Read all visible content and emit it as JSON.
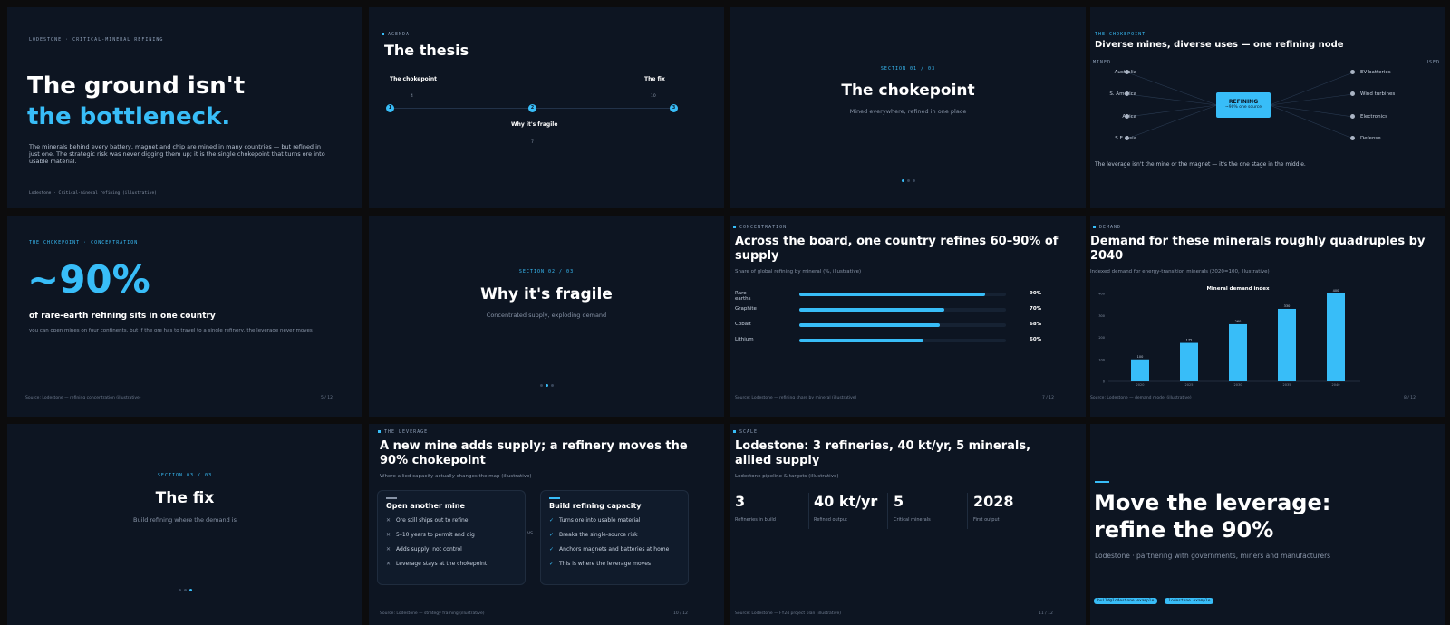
{
  "s1": {
    "kicker": "LODESTONE · CRITICAL-MINERAL REFINING",
    "title_line1": "The ground isn't",
    "title_line2": "the bottleneck.",
    "body": "The minerals behind every battery, magnet and chip are mined in many countries — but refined in just one. The strategic risk was never digging them up; it is the single chokepoint that turns ore into usable material.",
    "footer": "Lodestone · Critical-mineral refining (illustrative)"
  },
  "s2": {
    "kicker": "AGENDA",
    "title": "The thesis",
    "items": [
      {
        "label": "The chokepoint",
        "num": "1",
        "page": "4"
      },
      {
        "label": "Why it's fragile",
        "num": "2",
        "page": "7"
      },
      {
        "label": "The fix",
        "num": "3",
        "page": "10"
      }
    ]
  },
  "s3": {
    "kicker": "SECTION 01 / 03",
    "title": "The chokepoint",
    "subtitle": "Mined everywhere, refined in one place"
  },
  "s4": {
    "kicker": "THE CHOKEPOINT",
    "title": "Diverse mines, diverse uses — one refining node",
    "mined_label": "MINED",
    "used_label": "USED",
    "mined": [
      "Australia",
      "S. America",
      "Africa",
      "S.E. Asia"
    ],
    "used": [
      "EV batteries",
      "Wind turbines",
      "Electronics",
      "Defense"
    ],
    "node_title": "REFINING",
    "node_sub": "~90% one source",
    "caption": "The leverage isn't the mine or the magnet — it's the one stage in the middle."
  },
  "s5": {
    "kicker": "THE CHOKEPOINT · CONCENTRATION",
    "big": "~90%",
    "headline": "of rare-earth refining sits in one country",
    "body": "you can open mines on four continents, but if the ore has to travel to a single refinery, the leverage never moves",
    "footer": "Source: Lodestone — refining concentration (illustrative)",
    "page": "5 / 12"
  },
  "s6": {
    "kicker": "SECTION 02 / 03",
    "title": "Why it's fragile",
    "subtitle": "Concentrated supply, exploding demand"
  },
  "s7": {
    "kicker": "CONCENTRATION",
    "title": "Across the board, one country refines 60–90% of supply",
    "subtitle": "Share of global refining by mineral (%, illustrative)",
    "footer": "Source: Lodestone — refining share by mineral (illustrative)",
    "page": "7 / 12",
    "chart_data": {
      "type": "bar",
      "orientation": "horizontal",
      "categories": [
        "Rare earths",
        "Graphite",
        "Cobalt",
        "Lithium"
      ],
      "values": [
        90,
        70,
        68,
        60
      ],
      "value_labels": [
        "90%",
        "70%",
        "68%",
        "60%"
      ],
      "xlim": [
        0,
        100
      ]
    }
  },
  "s8": {
    "kicker": "DEMAND",
    "title": "Demand for these minerals roughly quadruples by 2040",
    "subtitle": "Indexed demand for energy-transition minerals (2020=100, illustrative)",
    "footer": "Source: Lodestone — demand model (illustrative)",
    "page": "8 / 12",
    "chart_data": {
      "type": "bar",
      "title": "Mineral demand index",
      "categories": [
        "2020",
        "2025",
        "2030",
        "2035",
        "2040"
      ],
      "values": [
        100,
        175,
        260,
        330,
        400
      ],
      "ylim": [
        0,
        400
      ],
      "yticks": [
        "0",
        "100",
        "200",
        "300",
        "400"
      ]
    }
  },
  "s9": {
    "kicker": "SECTION 03 / 03",
    "title": "The fix",
    "subtitle": "Build refining where the demand is"
  },
  "s10": {
    "kicker": "THE LEVERAGE",
    "title": "A new mine adds supply; a refinery moves the 90% chokepoint",
    "subtitle": "Where allied capacity actually changes the map (illustrative)",
    "left_title": "Open another mine",
    "left_items": [
      "Ore still ships out to refine",
      "5–10 years to permit and dig",
      "Adds supply, not control",
      "Leverage stays at the chokepoint"
    ],
    "vs": "VS",
    "right_title": "Build refining capacity",
    "right_items": [
      "Turns ore into usable material",
      "Breaks the single-source risk",
      "Anchors magnets and batteries at home",
      "This is where the leverage moves"
    ],
    "footer": "Source: Lodestone — strategy framing (illustrative)",
    "page": "10 / 12"
  },
  "s11": {
    "kicker": "SCALE",
    "title": "Lodestone: 3 refineries, 40 kt/yr, 5 minerals, allied supply",
    "subtitle": "Lodestone pipeline & targets (illustrative)",
    "stats": [
      {
        "value": "3",
        "label": "Refineries in build"
      },
      {
        "value": "40 kt/yr",
        "label": "Refined output"
      },
      {
        "value": "5",
        "label": "Critical minerals"
      },
      {
        "value": "2028",
        "label": "First output"
      }
    ],
    "footer": "Source: Lodestone — FY24 project plan (illustrative)",
    "page": "11 / 12"
  },
  "s12": {
    "title_line1": "Move the leverage:",
    "title_line2": "refine the 90%",
    "subtitle": "Lodestone · partnering with governments, miners and manufacturers",
    "tags": [
      "build@lodestone.example",
      "lodestone.example"
    ]
  },
  "colors": {
    "accent": "#38bdf8",
    "slide_bg": "#0d1522",
    "page_bg": "#0c0c0d"
  }
}
